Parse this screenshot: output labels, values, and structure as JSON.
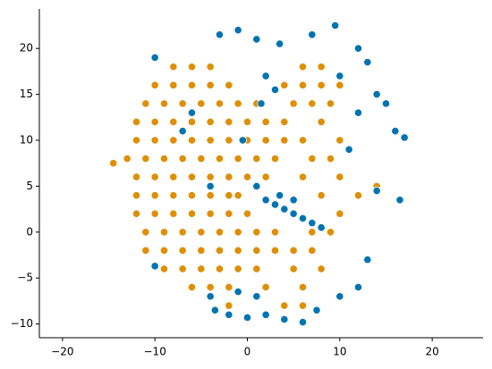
{
  "chart_data": {
    "type": "scatter",
    "xlim": [
      -22.5,
      25.5
    ],
    "ylim": [
      -11.5,
      24.3
    ],
    "xticks": [
      {
        "value": -20,
        "label": "−20"
      },
      {
        "value": -10,
        "label": "−10"
      },
      0,
      10,
      20
    ],
    "yticks": [
      {
        "value": -10,
        "label": "−10"
      },
      {
        "value": -5,
        "label": "−5"
      },
      0,
      5,
      10,
      15,
      20
    ],
    "series": [
      {
        "color": "#de8f05",
        "x": [
          -8,
          -6,
          -4,
          6,
          8,
          -10,
          -8,
          -6,
          -4,
          -2,
          4,
          6,
          8,
          10,
          -11,
          -9,
          -7,
          -5,
          -3,
          -1,
          1,
          5,
          7,
          9,
          -12,
          -10,
          -8,
          -6,
          -4,
          -2,
          0,
          2,
          4,
          8,
          -12,
          -10,
          -8,
          -6,
          -4,
          -2,
          0,
          2,
          4,
          6,
          10,
          -13,
          -11,
          -9,
          -7,
          -5,
          -3,
          -1,
          1,
          3,
          7,
          9,
          -12,
          -10,
          -8,
          -6,
          -4,
          -2,
          0,
          2,
          6,
          10,
          -12,
          -10,
          -8,
          -6,
          -4,
          -2,
          -1,
          8,
          12,
          -12,
          -10,
          -8,
          -6,
          -4,
          -2,
          0,
          10,
          -11,
          -9,
          -7,
          -5,
          -3,
          -1,
          1,
          3,
          7,
          9,
          -11,
          -9,
          -7,
          -5,
          -3,
          -1,
          1,
          3,
          5,
          7,
          -9,
          -7,
          -5,
          -3,
          -1,
          1,
          5,
          8,
          -6,
          -4,
          -2,
          2,
          6,
          -2,
          4,
          6,
          -14.5,
          14
        ],
        "y": [
          18,
          18,
          18,
          18,
          18,
          16,
          16,
          16,
          16,
          16,
          16,
          16,
          16,
          16,
          14,
          14,
          14,
          14,
          14,
          14,
          14,
          14,
          14,
          14,
          12,
          12,
          12,
          12,
          12,
          12,
          12,
          12,
          12,
          12,
          10,
          10,
          10,
          10,
          10,
          10,
          10,
          10,
          10,
          10,
          10,
          8,
          8,
          8,
          8,
          8,
          8,
          8,
          8,
          8,
          8,
          8,
          6,
          6,
          6,
          6,
          6,
          6,
          6,
          6,
          6,
          6,
          4,
          4,
          4,
          4,
          4,
          4,
          4,
          4,
          4,
          2,
          2,
          2,
          2,
          2,
          2,
          2,
          2,
          0,
          0,
          0,
          0,
          0,
          0,
          0,
          0,
          0,
          0,
          -2,
          -2,
          -2,
          -2,
          -2,
          -2,
          -2,
          -2,
          -2,
          -2,
          -4,
          -4,
          -4,
          -4,
          -4,
          -4,
          -4,
          -4,
          -6,
          -6,
          -6,
          -6,
          -6,
          -8,
          -8,
          -8,
          7.5,
          5
        ]
      },
      {
        "color": "#0173b2",
        "x": [
          -10,
          -10,
          -4,
          -3.5,
          -2,
          0,
          2,
          4,
          6,
          7.5,
          -1,
          1,
          -3,
          -1,
          1,
          3.5,
          7,
          9.5,
          12,
          13,
          14,
          15,
          16,
          17,
          16.5,
          14,
          13,
          12,
          10,
          2,
          3,
          1.5,
          -0.5,
          1,
          2,
          3,
          4,
          5,
          6,
          7,
          8,
          3.5,
          5,
          -7,
          -6,
          -4,
          10,
          11,
          12
        ],
        "y": [
          -3.7,
          19,
          -7,
          -8.5,
          -9,
          -9.3,
          -9,
          -9.5,
          -9.8,
          -8.5,
          -6.5,
          -7,
          21.5,
          22,
          21,
          20.5,
          21.5,
          22.5,
          20,
          18.5,
          15,
          14,
          11,
          10.3,
          3.5,
          4.5,
          -3,
          -6,
          -7,
          17,
          15.5,
          14,
          10,
          5,
          3.5,
          3,
          2.5,
          2,
          1.5,
          1,
          0.5,
          4,
          3.5,
          11,
          13,
          5,
          17,
          9,
          13
        ]
      }
    ]
  }
}
